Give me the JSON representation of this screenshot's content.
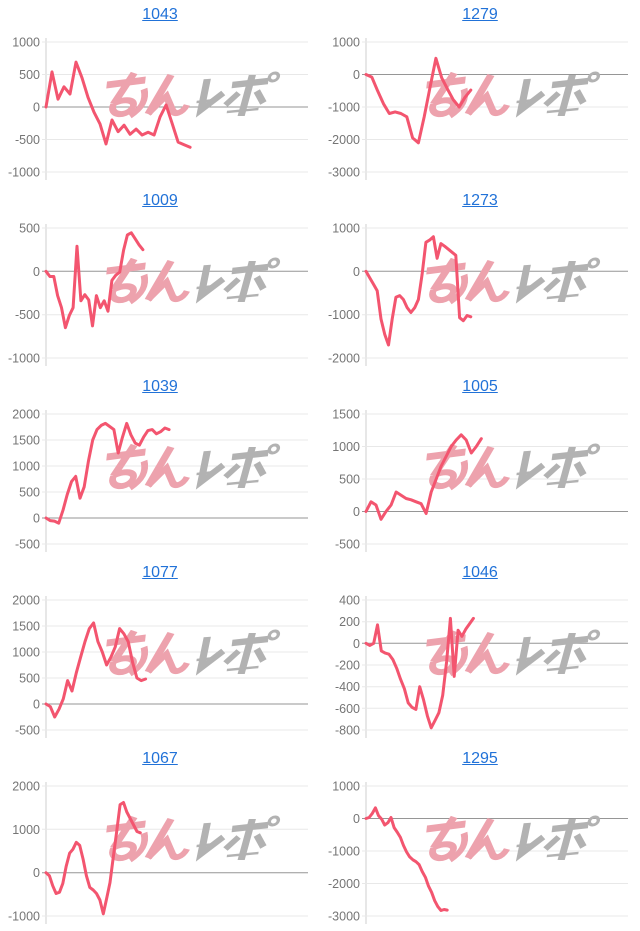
{
  "page": {
    "background": "#ffffff"
  },
  "styles": {
    "line_color": "#f3556f",
    "link_color": "#2172d8",
    "label_color": "#757575",
    "grid_color": "#e8e8e8",
    "zero_line_color": "#969696",
    "axis_line_color": "#cfcfcf"
  },
  "watermark": {
    "text": "みんレポ",
    "pink_part": "みん",
    "gray_part": "レポ",
    "pink_color": "#eda2ad",
    "gray_color": "#b2b2b2"
  },
  "chart_data": [
    {
      "type": "line",
      "title": "1043",
      "ylabel": "",
      "xlabel": "",
      "grid": true,
      "yticks": [
        1000,
        500,
        0,
        -500,
        -1000
      ],
      "x_span": 0.55,
      "values": [
        0,
        540,
        120,
        310,
        200,
        690,
        450,
        150,
        -80,
        -260,
        -570,
        -200,
        -380,
        -280,
        -420,
        -340,
        -430,
        -390,
        -430,
        -150,
        30,
        -250,
        -540,
        -580,
        -620
      ]
    },
    {
      "type": "line",
      "title": "1279",
      "ylabel": "",
      "xlabel": "",
      "grid": true,
      "yticks": [
        1000,
        0,
        -1000,
        -2000,
        -3000
      ],
      "x_span": 0.4,
      "values": [
        0,
        -80,
        -500,
        -900,
        -1200,
        -1150,
        -1200,
        -1300,
        -1950,
        -2100,
        -1300,
        -400,
        500,
        -100,
        -450,
        -780,
        -1000,
        -700,
        -480
      ]
    },
    {
      "type": "line",
      "title": "1009",
      "ylabel": "",
      "xlabel": "",
      "grid": true,
      "yticks": [
        500,
        0,
        -500,
        -1000
      ],
      "x_span": 0.37,
      "values": [
        0,
        -60,
        -60,
        -280,
        -420,
        -650,
        -510,
        -420,
        290,
        -340,
        -270,
        -330,
        -630,
        -280,
        -420,
        -340,
        -460,
        -105,
        -45,
        -10,
        245,
        420,
        445,
        375,
        305,
        250
      ]
    },
    {
      "type": "line",
      "title": "1273",
      "ylabel": "",
      "xlabel": "",
      "grid": true,
      "yticks": [
        1000,
        0,
        -1000,
        -2000
      ],
      "x_span": 0.4,
      "values": [
        0,
        -150,
        -300,
        -450,
        -1100,
        -1450,
        -1700,
        -1100,
        -600,
        -560,
        -650,
        -840,
        -950,
        -840,
        -650,
        -70,
        670,
        720,
        800,
        300,
        640,
        580,
        510,
        440,
        370,
        -1070,
        -1140,
        -1020,
        -1050
      ]
    },
    {
      "type": "line",
      "title": "1039",
      "ylabel": "",
      "xlabel": "",
      "grid": true,
      "yticks": [
        2000,
        1500,
        1000,
        500,
        0,
        -500
      ],
      "x_span": 0.47,
      "values": [
        0,
        -50,
        -60,
        -100,
        150,
        450,
        700,
        800,
        380,
        600,
        1100,
        1500,
        1700,
        1780,
        1820,
        1760,
        1700,
        1250,
        1550,
        1820,
        1600,
        1440,
        1400,
        1560,
        1680,
        1700,
        1620,
        1660,
        1730,
        1700
      ]
    },
    {
      "type": "line",
      "title": "1005",
      "ylabel": "",
      "xlabel": "",
      "grid": true,
      "yticks": [
        1500,
        1000,
        500,
        0,
        -500
      ],
      "x_span": 0.44,
      "values": [
        0,
        150,
        100,
        -120,
        0,
        100,
        300,
        250,
        200,
        180,
        150,
        120,
        -30,
        300,
        500,
        700,
        850,
        1000,
        1100,
        1180,
        1100,
        900,
        1000,
        1120
      ]
    },
    {
      "type": "line",
      "title": "1077",
      "ylabel": "",
      "xlabel": "",
      "grid": true,
      "yticks": [
        2000,
        1500,
        1000,
        500,
        0,
        -500
      ],
      "x_span": 0.38,
      "values": [
        0,
        -50,
        -250,
        -100,
        100,
        450,
        250,
        600,
        900,
        1200,
        1450,
        1560,
        1200,
        1000,
        750,
        900,
        1100,
        1450,
        1350,
        1200,
        800,
        500,
        450,
        480
      ]
    },
    {
      "type": "line",
      "title": "1046",
      "ylabel": "",
      "xlabel": "",
      "grid": true,
      "yticks": [
        400,
        200,
        0,
        -200,
        -400,
        -600,
        -800
      ],
      "x_span": 0.41,
      "values": [
        0,
        -20,
        0,
        170,
        -70,
        -90,
        -100,
        -150,
        -230,
        -330,
        -420,
        -550,
        -590,
        -610,
        -400,
        -520,
        -670,
        -780,
        -710,
        -640,
        -480,
        -170,
        230,
        -305,
        120,
        65,
        130,
        180,
        230
      ]
    },
    {
      "type": "line",
      "title": "1067",
      "ylabel": "",
      "xlabel": "",
      "grid": true,
      "yticks": [
        2000,
        1000,
        0,
        -1000
      ],
      "x_span": 0.36,
      "values": [
        0,
        -70,
        -300,
        -480,
        -450,
        -250,
        150,
        450,
        540,
        700,
        630,
        310,
        -70,
        -340,
        -400,
        -480,
        -630,
        -950,
        -600,
        -230,
        380,
        950,
        1570,
        1620,
        1400,
        1250,
        1100,
        950,
        920
      ]
    },
    {
      "type": "line",
      "title": "1295",
      "ylabel": "",
      "xlabel": "",
      "grid": true,
      "yticks": [
        1000,
        0,
        -1000,
        -2000,
        -3000
      ],
      "x_span": 0.31,
      "values": [
        0,
        30,
        150,
        330,
        90,
        -20,
        -200,
        -130,
        30,
        -280,
        -420,
        -580,
        -830,
        -1030,
        -1180,
        -1270,
        -1330,
        -1420,
        -1630,
        -1810,
        -2080,
        -2270,
        -2530,
        -2710,
        -2830,
        -2800,
        -2820
      ]
    }
  ]
}
